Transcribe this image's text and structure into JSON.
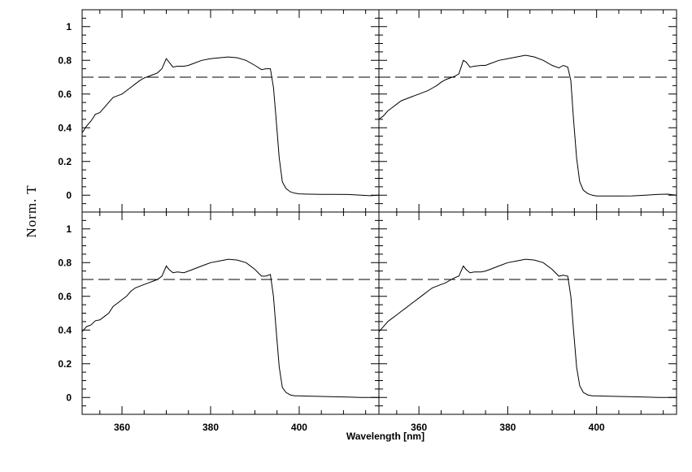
{
  "chart_data": {
    "type": "line",
    "layout": "2x2 grid of panels with shared axes",
    "xlabel": "Wavelength [nm]",
    "ylabel": "Norm. T",
    "xlim": [
      351,
      418
    ],
    "ylim": [
      -0.1,
      1.1
    ],
    "x_ticks": [
      360,
      380,
      400
    ],
    "y_ticks": [
      0,
      0.2,
      0.4,
      0.6,
      0.8,
      1
    ],
    "x_tick_labels": [
      "360",
      "380",
      "400"
    ],
    "y_tick_labels": [
      "0",
      "0.2",
      "0.4",
      "0.6",
      "0.8",
      "1"
    ],
    "reference_line": {
      "y": 0.7,
      "style": "dashed"
    },
    "grid": false,
    "line_color": "#000000",
    "panels": [
      {
        "position": "top-left",
        "x": [
          351,
          352,
          353,
          354,
          355,
          356,
          357,
          358,
          359,
          360,
          361,
          362,
          363,
          364,
          365,
          366,
          367,
          368,
          369,
          370,
          370.6,
          371.5,
          372.5,
          374,
          375,
          376,
          378,
          380,
          382,
          384,
          386,
          388,
          390,
          391.5,
          392.5,
          393.5,
          394.2,
          394.8,
          395.5,
          396.2,
          397,
          398,
          399,
          400,
          402,
          405,
          408,
          411,
          414,
          416,
          418
        ],
        "y": [
          0.37,
          0.41,
          0.44,
          0.48,
          0.49,
          0.52,
          0.55,
          0.58,
          0.59,
          0.6,
          0.62,
          0.64,
          0.66,
          0.68,
          0.695,
          0.705,
          0.715,
          0.725,
          0.75,
          0.81,
          0.79,
          0.76,
          0.765,
          0.765,
          0.77,
          0.78,
          0.8,
          0.81,
          0.815,
          0.82,
          0.815,
          0.8,
          0.77,
          0.745,
          0.75,
          0.75,
          0.64,
          0.45,
          0.22,
          0.08,
          0.04,
          0.02,
          0.012,
          0.008,
          0.006,
          0.005,
          0.005,
          0.004,
          0.0,
          -0.003,
          0.0
        ]
      },
      {
        "position": "top-right",
        "x": [
          351,
          352,
          353,
          354,
          355,
          356,
          357,
          358,
          359,
          360,
          361,
          362,
          363,
          364,
          365,
          366,
          367,
          368,
          369,
          370,
          370.6,
          371.5,
          372.5,
          374,
          375,
          376,
          378,
          380,
          382,
          384,
          386,
          388,
          390,
          391.5,
          392.5,
          393.5,
          394.2,
          394.8,
          395.5,
          396.2,
          397,
          398,
          399,
          400,
          402,
          405,
          408,
          411,
          414,
          416,
          418
        ],
        "y": [
          0.45,
          0.47,
          0.5,
          0.52,
          0.54,
          0.56,
          0.57,
          0.58,
          0.59,
          0.6,
          0.61,
          0.62,
          0.635,
          0.65,
          0.67,
          0.685,
          0.695,
          0.705,
          0.72,
          0.8,
          0.79,
          0.76,
          0.765,
          0.77,
          0.77,
          0.78,
          0.8,
          0.81,
          0.82,
          0.83,
          0.82,
          0.8,
          0.77,
          0.755,
          0.77,
          0.76,
          0.68,
          0.45,
          0.22,
          0.08,
          0.03,
          0.01,
          0.0,
          -0.005,
          -0.005,
          -0.005,
          -0.004,
          0.0,
          0.005,
          0.006,
          0.0
        ]
      },
      {
        "position": "bottom-left",
        "x": [
          351,
          352,
          353,
          354,
          355,
          356,
          357,
          358,
          359,
          360,
          361,
          362,
          363,
          364,
          365,
          366,
          367,
          368,
          369,
          370,
          370.6,
          371.5,
          372.5,
          374,
          375,
          376,
          378,
          380,
          382,
          384,
          386,
          388,
          390,
          391.5,
          392.5,
          393.5,
          394.2,
          394.8,
          395.5,
          396.2,
          397,
          398,
          399,
          400,
          402,
          405,
          408,
          411,
          414,
          416,
          418
        ],
        "y": [
          0.39,
          0.42,
          0.43,
          0.455,
          0.46,
          0.48,
          0.5,
          0.54,
          0.56,
          0.58,
          0.6,
          0.63,
          0.65,
          0.66,
          0.67,
          0.68,
          0.69,
          0.7,
          0.72,
          0.78,
          0.76,
          0.74,
          0.745,
          0.74,
          0.75,
          0.76,
          0.78,
          0.8,
          0.81,
          0.82,
          0.815,
          0.8,
          0.76,
          0.72,
          0.72,
          0.73,
          0.6,
          0.4,
          0.18,
          0.06,
          0.03,
          0.015,
          0.01,
          0.01,
          0.008,
          0.006,
          0.004,
          0.002,
          0.0,
          0.0,
          0.0
        ]
      },
      {
        "position": "bottom-right",
        "x": [
          351,
          352,
          353,
          354,
          355,
          356,
          357,
          358,
          359,
          360,
          361,
          362,
          363,
          364,
          365,
          366,
          367,
          368,
          369,
          370,
          370.6,
          371.5,
          372.5,
          374,
          375,
          376,
          378,
          380,
          382,
          384,
          386,
          388,
          390,
          391.5,
          392.5,
          393.5,
          394.2,
          394.8,
          395.5,
          396.2,
          397,
          398,
          399,
          400,
          402,
          405,
          408,
          411,
          414,
          416,
          418
        ],
        "y": [
          0.39,
          0.42,
          0.45,
          0.47,
          0.49,
          0.51,
          0.53,
          0.55,
          0.57,
          0.59,
          0.61,
          0.63,
          0.65,
          0.66,
          0.67,
          0.68,
          0.695,
          0.71,
          0.72,
          0.78,
          0.76,
          0.74,
          0.745,
          0.745,
          0.75,
          0.76,
          0.78,
          0.8,
          0.81,
          0.82,
          0.815,
          0.8,
          0.76,
          0.72,
          0.725,
          0.72,
          0.6,
          0.4,
          0.18,
          0.07,
          0.03,
          0.015,
          0.01,
          0.01,
          0.008,
          0.006,
          0.004,
          0.002,
          0.0,
          0.0,
          0.0
        ]
      }
    ]
  }
}
